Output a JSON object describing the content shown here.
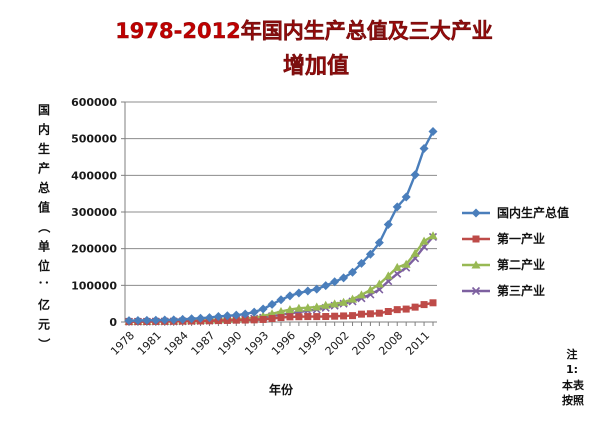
{
  "chart_data": {
    "type": "line",
    "title": "1978-2012年国内生产总值及三大产业",
    "subtitle": "增加值",
    "ylabel": "国内生产总值（单位：亿元）",
    "xlabel": "年份",
    "ylim": [
      0,
      600000
    ],
    "yticks": [
      0,
      100000,
      200000,
      300000,
      400000,
      500000,
      600000
    ],
    "xtick_labels": [
      "1978",
      "1981",
      "1984",
      "1987",
      "1990",
      "1993",
      "1996",
      "1999",
      "2002",
      "2005",
      "2008",
      "2011"
    ],
    "grid": true,
    "legend_position": "right",
    "x": [
      1978,
      1979,
      1980,
      1981,
      1982,
      1983,
      1984,
      1985,
      1986,
      1987,
      1988,
      1989,
      1990,
      1991,
      1992,
      1993,
      1994,
      1995,
      1996,
      1997,
      1998,
      1999,
      2000,
      2001,
      2002,
      2003,
      2004,
      2005,
      2006,
      2007,
      2008,
      2009,
      2010,
      2011,
      2012
    ],
    "series": [
      {
        "name": "国内生产总值",
        "color": "#4a7ebb",
        "marker": "diamond",
        "values": [
          3645,
          4063,
          4546,
          4892,
          5323,
          5963,
          7208,
          9016,
          10275,
          12059,
          15043,
          16992,
          18668,
          21782,
          26924,
          35334,
          48198,
          60794,
          71177,
          78973,
          84402,
          89677,
          99215,
          109655,
          120333,
          135823,
          159878,
          184937,
          216314,
          265810,
          314045,
          340903,
          401513,
          473104,
          519470
        ]
      },
      {
        "name": "第一产业",
        "color": "#be4b48",
        "marker": "square",
        "values": [
          1028,
          1270,
          1372,
          1559,
          1777,
          1978,
          2316,
          2564,
          2789,
          3233,
          3865,
          4266,
          5062,
          5342,
          5867,
          6964,
          9573,
          12136,
          14015,
          14442,
          14818,
          14770,
          14945,
          15781,
          16537,
          17382,
          21413,
          22420,
          24040,
          28627,
          33702,
          35226,
          40534,
          47486,
          52374
        ]
      },
      {
        "name": "第二产业",
        "color": "#98b954",
        "marker": "triangle",
        "values": [
          1745,
          1914,
          2192,
          2256,
          2383,
          2646,
          3106,
          3867,
          4493,
          5252,
          6587,
          7278,
          7717,
          9102,
          11700,
          16454,
          22445,
          28679,
          33835,
          37543,
          39004,
          41034,
          45556,
          49512,
          53897,
          62436,
          73904,
          87598,
          103720,
          125831,
          149003,
          157639,
          187383,
          220413,
          235162
        ]
      },
      {
        "name": "第三产业",
        "color": "#7d60a0",
        "marker": "x",
        "values": [
          872,
          879,
          982,
          1077,
          1163,
          1338,
          1786,
          2585,
          2994,
          3574,
          4590,
          5448,
          5888,
          7337,
          9357,
          11916,
          16180,
          19978,
          23326,
          26988,
          30580,
          33873,
          38714,
          44362,
          49899,
          56005,
          64561,
          74919,
          88555,
          111352,
          131340,
          148038,
          173596,
          205205,
          231934
        ]
      }
    ],
    "note": [
      "注",
      "1:",
      "本表",
      "按照"
    ]
  }
}
